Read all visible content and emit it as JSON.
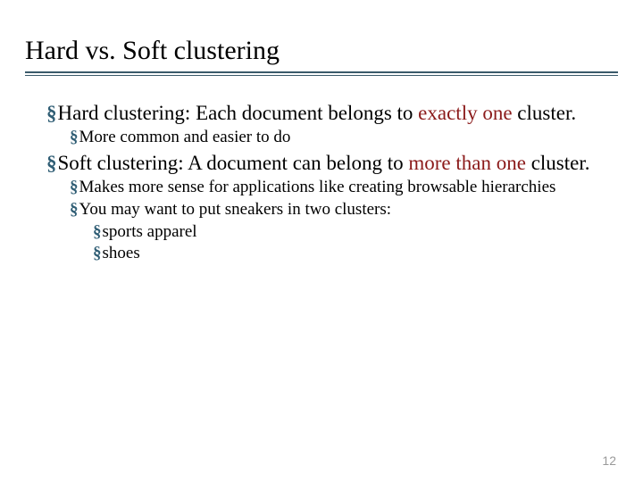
{
  "title": "Hard vs. Soft clustering",
  "bullet_glyph": "§",
  "colors": {
    "bullet": "#2f5d74",
    "highlight": "#8b1a1a",
    "rule": "#3a5a6a",
    "page_num": "#9a9a9a",
    "background": "#ffffff"
  },
  "items": {
    "hard_label": "Hard clustering: Each document belongs to ",
    "hard_highlight": "exactly one",
    "hard_tail": " cluster.",
    "hard_sub1": "More common and easier to do",
    "soft_label": "Soft clustering: A document can belong to ",
    "soft_highlight": "more than one",
    "soft_tail": " cluster.",
    "soft_sub1": "Makes more sense for applications like creating browsable hierarchies",
    "soft_sub2": "You may want to put sneakers in two clusters:",
    "soft_sub2a": "sports apparel",
    "soft_sub2b": "shoes"
  },
  "page_number": "12"
}
